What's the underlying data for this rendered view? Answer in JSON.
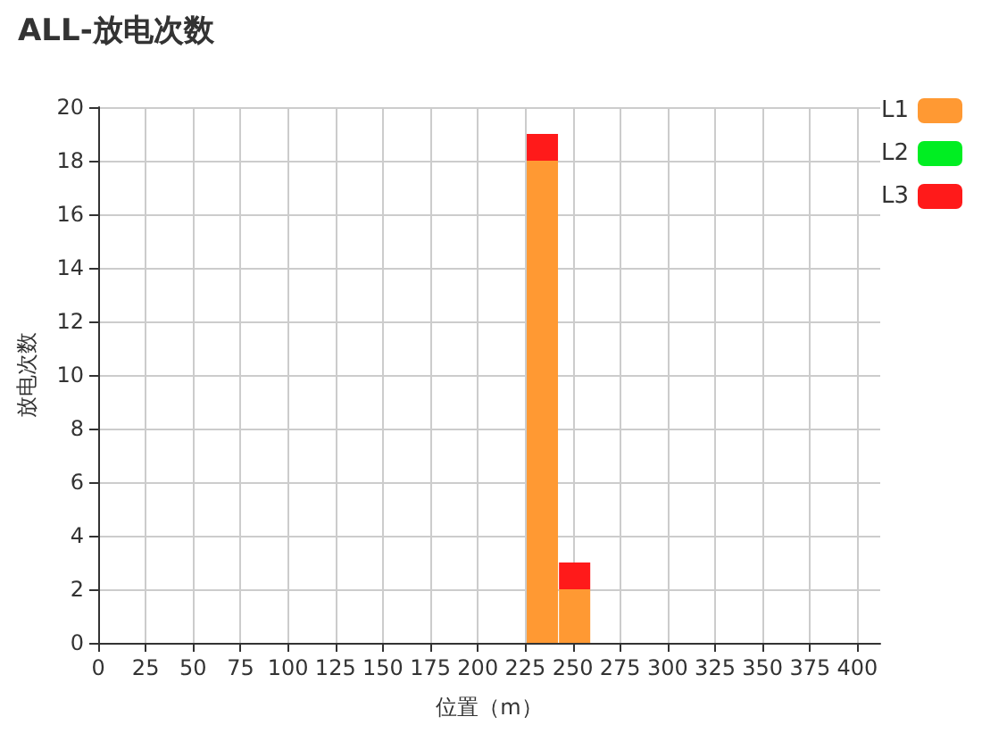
{
  "chart_data": {
    "type": "bar",
    "title": "ALL-放电次数",
    "xlabel": "位置（m）",
    "ylabel": "放电次数",
    "x": [
      234,
      251
    ],
    "series": [
      {
        "name": "L1",
        "color": "#ff9933",
        "values": [
          18,
          2
        ]
      },
      {
        "name": "L2",
        "color": "#00ee22",
        "values": [
          0,
          0
        ]
      },
      {
        "name": "L3",
        "color": "#ff1a1a",
        "values": [
          1,
          1
        ]
      }
    ],
    "stacked": true,
    "xlim": [
      0,
      412
    ],
    "xticks": [
      0,
      25,
      50,
      75,
      100,
      125,
      150,
      175,
      200,
      225,
      250,
      275,
      300,
      325,
      350,
      375,
      400
    ],
    "ylim": [
      0,
      20
    ],
    "yticks": [
      0,
      2,
      4,
      6,
      8,
      10,
      12,
      14,
      16,
      18,
      20
    ],
    "grid": true,
    "legend": "top right"
  }
}
